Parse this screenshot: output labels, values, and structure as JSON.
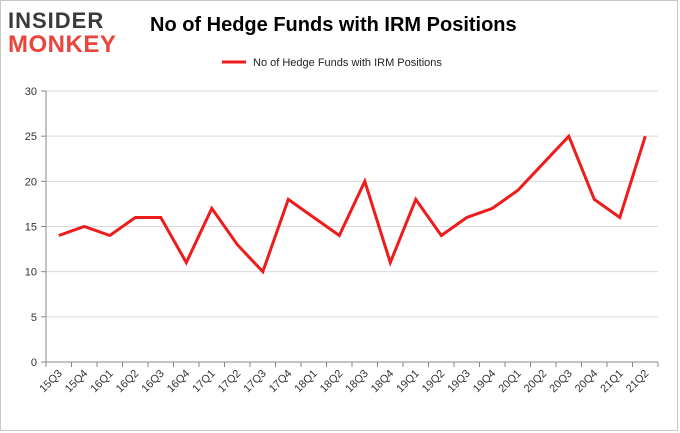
{
  "logo": {
    "line1": "INSIDER",
    "line2": "MONKEY"
  },
  "chart_data": {
    "type": "line",
    "title": "No of Hedge Funds with IRM Positions",
    "xlabel": "",
    "ylabel": "",
    "categories": [
      "15Q3",
      "15Q4",
      "16Q1",
      "16Q2",
      "16Q3",
      "16Q4",
      "17Q1",
      "17Q2",
      "17Q3",
      "17Q4",
      "18Q1",
      "18Q2",
      "18Q3",
      "18Q4",
      "19Q1",
      "19Q2",
      "19Q3",
      "19Q4",
      "20Q1",
      "20Q2",
      "20Q3",
      "20Q4",
      "21Q1",
      "21Q2"
    ],
    "series": [
      {
        "name": "No of Hedge Funds with IRM Positions",
        "color": "#ee1c1c",
        "values": [
          14,
          15,
          14,
          16,
          16,
          11,
          17,
          13,
          10,
          18,
          16,
          14,
          20,
          11,
          18,
          14,
          16,
          17,
          19,
          22,
          25,
          18,
          16,
          25
        ]
      }
    ],
    "ylim": [
      0,
      30
    ],
    "yticks": [
      0,
      5,
      10,
      15,
      20,
      25,
      30
    ],
    "grid": true,
    "legend": "top-center"
  }
}
